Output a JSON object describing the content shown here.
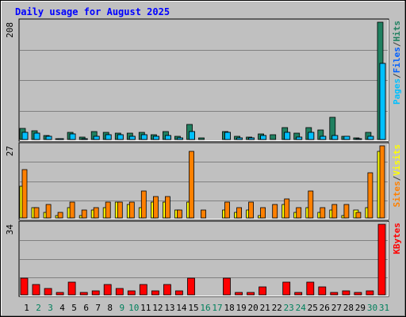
{
  "chart_data": {
    "type": "bar",
    "title": "Daily usage for August 2025",
    "categories": [
      "1",
      "2",
      "3",
      "4",
      "5",
      "6",
      "7",
      "8",
      "9",
      "10",
      "11",
      "12",
      "13",
      "14",
      "15",
      "16",
      "17",
      "18",
      "19",
      "20",
      "21",
      "22",
      "23",
      "24",
      "25",
      "26",
      "27",
      "28",
      "29",
      "30",
      "31"
    ],
    "weekend_days": [
      "2",
      "3",
      "9",
      "10",
      "16",
      "17",
      "23",
      "24",
      "30",
      "31"
    ],
    "grid": true,
    "panels": [
      {
        "id": "hits",
        "max_label": "208",
        "ylim": [
          0,
          208
        ],
        "legend": [
          "Pages",
          "/",
          "Files",
          "/",
          "Hits"
        ],
        "legend_colors": [
          "#00c0ff",
          "#404040",
          "#0060ff",
          "#404040",
          "#208060"
        ],
        "series": [
          {
            "name": "Hits",
            "color": "#208060",
            "values": [
              20,
              16,
              7,
              2,
              12,
              4,
              14,
              12,
              11,
              11,
              12,
              8,
              14,
              6,
              26,
              3,
              0,
              14,
              5,
              4,
              10,
              9,
              21,
              11,
              21,
              17,
              39,
              6,
              3,
              12,
              208
            ]
          },
          {
            "name": "Files",
            "color": "#00c0ff",
            "values": [
              13,
              11,
              5,
              1,
              10,
              2,
              6,
              8,
              9,
              6,
              9,
              5,
              7,
              3,
              14,
              0,
              0,
              12,
              3,
              3,
              7,
              0,
              12,
              4,
              12,
              6,
              7,
              5,
              2,
              6,
              135
            ]
          },
          {
            "name": "Pages",
            "color": "#00c0ff",
            "values": [
              13,
              11,
              5,
              1,
              10,
              2,
              6,
              8,
              9,
              6,
              9,
              5,
              7,
              3,
              14,
              0,
              0,
              12,
              3,
              3,
              7,
              0,
              12,
              4,
              12,
              6,
              7,
              5,
              2,
              6,
              135
            ]
          }
        ]
      },
      {
        "id": "visits",
        "max_label": "27",
        "ylim": [
          0,
          27
        ],
        "legend": [
          "Sites",
          "/",
          "Visits"
        ],
        "legend_colors": [
          "#ff8000",
          "#404040",
          "#ffff00"
        ],
        "series": [
          {
            "name": "Visits",
            "color": "#ffff00",
            "values": [
              12,
              4,
              2,
              1,
              4,
              1,
              3,
              4,
              6,
              5,
              4,
              6,
              6,
              3,
              6,
              0,
              0,
              3,
              2,
              3,
              1,
              0,
              5,
              2,
              4,
              2,
              3,
              1,
              3,
              4,
              25
            ]
          },
          {
            "name": "Sites",
            "color": "#ff8000",
            "values": [
              18,
              4,
              5,
              2,
              6,
              3,
              4,
              6,
              6,
              6,
              10,
              8,
              8,
              3,
              25,
              3,
              0,
              6,
              4,
              6,
              4,
              5,
              7,
              4,
              10,
              4,
              5,
              5,
              2,
              17,
              27
            ]
          }
        ]
      },
      {
        "id": "kbytes",
        "max_label": "34",
        "ylim": [
          0,
          34
        ],
        "legend": [
          "KBytes"
        ],
        "legend_colors": [
          "#ff0000"
        ],
        "series": [
          {
            "name": "KBytes",
            "color": "#ff0000",
            "values": [
              8,
              5,
              3,
              1,
              6,
              1,
              2,
              5,
              3,
              2,
              5,
              2,
              5,
              2,
              8,
              0,
              0,
              8,
              1,
              1,
              4,
              0,
              6,
              1,
              6,
              4,
              1,
              2,
              1,
              2,
              34
            ]
          }
        ]
      }
    ]
  }
}
